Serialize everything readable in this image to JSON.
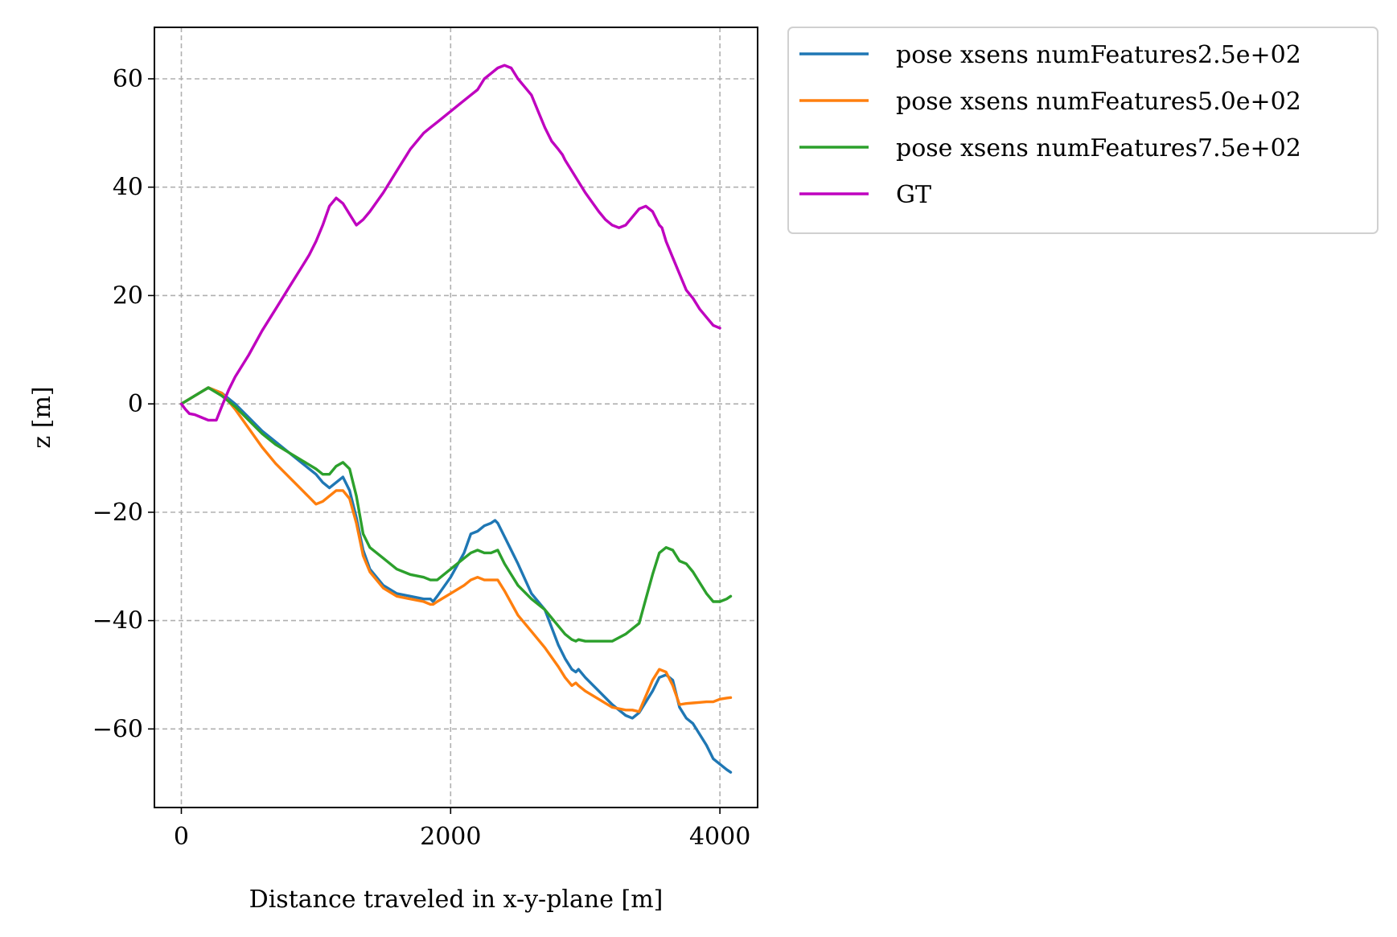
{
  "chart_data": {
    "type": "line",
    "title": "",
    "xlabel": "Distance traveled in x-y-plane [m]",
    "ylabel": "z [m]",
    "xlim": [
      -200,
      4280
    ],
    "ylim": [
      -74.5,
      69.5
    ],
    "xticks": [
      0,
      2000,
      4000
    ],
    "yticks": [
      -60,
      -40,
      -20,
      0,
      20,
      40,
      60
    ],
    "xtick_labels": [
      "0",
      "2000",
      "4000"
    ],
    "ytick_labels": [
      "−60",
      "−40",
      "−20",
      "0",
      "20",
      "40",
      "60"
    ],
    "grid": true,
    "legend_position": "outside upper right",
    "series": [
      {
        "name": "pose xsens numFeatures2.5e+02",
        "color": "#1f77b4",
        "x": [
          0,
          100,
          200,
          300,
          400,
          500,
          600,
          700,
          800,
          900,
          1000,
          1050,
          1100,
          1150,
          1200,
          1250,
          1300,
          1350,
          1400,
          1500,
          1600,
          1700,
          1800,
          1850,
          1870,
          1900,
          2000,
          2100,
          2150,
          2200,
          2250,
          2300,
          2330,
          2350,
          2400,
          2500,
          2600,
          2700,
          2800,
          2850,
          2900,
          2930,
          2950,
          3000,
          3100,
          3200,
          3300,
          3350,
          3400,
          3500,
          3550,
          3600,
          3650,
          3700,
          3750,
          3800,
          3900,
          3950,
          4000,
          4050,
          4080
        ],
        "y": [
          0,
          1.5,
          3,
          2,
          0,
          -2.5,
          -5,
          -7,
          -9,
          -11,
          -13,
          -14.5,
          -15.5,
          -14.5,
          -13.5,
          -16,
          -21,
          -27,
          -30.5,
          -33.5,
          -35,
          -35.5,
          -36,
          -36,
          -36.5,
          -35.5,
          -32,
          -27.5,
          -24,
          -23.5,
          -22.5,
          -22,
          -21.5,
          -22,
          -24.5,
          -29.5,
          -35,
          -38,
          -44.5,
          -47,
          -49,
          -49.5,
          -49,
          -50.5,
          -53,
          -55.5,
          -57.5,
          -58,
          -57,
          -53,
          -50.5,
          -50,
          -51,
          -56,
          -58,
          -59,
          -63,
          -65.5,
          -66.5,
          -67.5,
          -68
        ]
      },
      {
        "name": "pose xsens numFeatures5.0e+02",
        "color": "#ff7f0e",
        "x": [
          0,
          100,
          200,
          300,
          400,
          500,
          600,
          700,
          800,
          900,
          1000,
          1050,
          1100,
          1150,
          1200,
          1250,
          1300,
          1350,
          1400,
          1500,
          1600,
          1700,
          1800,
          1850,
          1870,
          1900,
          2000,
          2100,
          2150,
          2200,
          2250,
          2300,
          2350,
          2400,
          2500,
          2600,
          2700,
          2800,
          2850,
          2900,
          2930,
          2950,
          3000,
          3100,
          3200,
          3300,
          3350,
          3400,
          3500,
          3550,
          3600,
          3650,
          3700,
          3750,
          3800,
          3850,
          3900,
          3950,
          4000,
          4050,
          4080
        ],
        "y": [
          0,
          1.5,
          3,
          2,
          -1,
          -4.5,
          -8,
          -11,
          -13.5,
          -16,
          -18.5,
          -18,
          -17,
          -16,
          -16,
          -17.5,
          -22,
          -28,
          -31,
          -34,
          -35.5,
          -36,
          -36.5,
          -37,
          -37,
          -36.5,
          -35,
          -33.5,
          -32.5,
          -32,
          -32.5,
          -32.5,
          -32.5,
          -34.5,
          -39,
          -42,
          -45,
          -48.5,
          -50.5,
          -52,
          -51.5,
          -52,
          -53,
          -54.5,
          -56,
          -56.5,
          -56.5,
          -56.8,
          -51,
          -49,
          -49.5,
          -52,
          -55.5,
          -55.3,
          -55.2,
          -55.1,
          -55,
          -55,
          -54.5,
          -54.3,
          -54.2
        ]
      },
      {
        "name": "pose xsens numFeatures7.5e+02",
        "color": "#2ca02c",
        "x": [
          0,
          100,
          200,
          300,
          400,
          500,
          600,
          700,
          800,
          900,
          1000,
          1050,
          1100,
          1150,
          1200,
          1250,
          1300,
          1350,
          1400,
          1500,
          1600,
          1700,
          1800,
          1850,
          1870,
          1900,
          2000,
          2100,
          2150,
          2200,
          2250,
          2300,
          2350,
          2400,
          2500,
          2600,
          2700,
          2800,
          2850,
          2900,
          2930,
          2950,
          3000,
          3100,
          3200,
          3300,
          3350,
          3400,
          3450,
          3500,
          3550,
          3600,
          3650,
          3700,
          3750,
          3800,
          3850,
          3900,
          3950,
          4000,
          4050,
          4080
        ],
        "y": [
          0,
          1.5,
          3,
          1.5,
          -0.5,
          -3,
          -5.5,
          -7.5,
          -9,
          -10.5,
          -12,
          -13,
          -13,
          -11.5,
          -10.8,
          -12,
          -17,
          -24,
          -26.5,
          -28.5,
          -30.5,
          -31.5,
          -32,
          -32.5,
          -32.5,
          -32.5,
          -30.5,
          -28.5,
          -27.5,
          -27,
          -27.5,
          -27.5,
          -27,
          -29.5,
          -33.5,
          -36,
          -38,
          -41,
          -42.5,
          -43.5,
          -43.8,
          -43.5,
          -43.8,
          -43.8,
          -43.8,
          -42.5,
          -41.5,
          -40.5,
          -36,
          -31.5,
          -27.5,
          -26.5,
          -27,
          -29,
          -29.5,
          -31,
          -33,
          -35,
          -36.5,
          -36.5,
          -36,
          -35.5
        ]
      },
      {
        "name": "GT",
        "color": "#bf00bf",
        "x": [
          0,
          30,
          60,
          100,
          150,
          200,
          230,
          260,
          300,
          350,
          400,
          500,
          600,
          700,
          800,
          900,
          950,
          1000,
          1050,
          1100,
          1150,
          1200,
          1250,
          1300,
          1350,
          1400,
          1500,
          1600,
          1700,
          1800,
          1850,
          1900,
          2000,
          2100,
          2150,
          2200,
          2250,
          2300,
          2350,
          2400,
          2450,
          2500,
          2550,
          2600,
          2650,
          2700,
          2750,
          2800,
          2830,
          2850,
          2900,
          3000,
          3100,
          3150,
          3200,
          3250,
          3300,
          3350,
          3400,
          3450,
          3500,
          3550,
          3570,
          3600,
          3650,
          3700,
          3750,
          3800,
          3850,
          3900,
          3950,
          4000
        ],
        "y": [
          0,
          -1,
          -1.8,
          -2,
          -2.5,
          -3,
          -3,
          -3,
          -0.5,
          2.5,
          5,
          9,
          13.5,
          17.5,
          21.5,
          25.5,
          27.5,
          30,
          33,
          36.5,
          38,
          37,
          35,
          33,
          34,
          35.5,
          39,
          43,
          47,
          50,
          51,
          52,
          54,
          56,
          57,
          58,
          60,
          61,
          62,
          62.5,
          62,
          60,
          58.5,
          57,
          54,
          51,
          48.5,
          47,
          46,
          45,
          43,
          39,
          35.5,
          34,
          33,
          32.5,
          33,
          34.5,
          36,
          36.5,
          35.5,
          33,
          32.5,
          30,
          27,
          24,
          21,
          19.5,
          17.5,
          16,
          14.5,
          14
        ]
      }
    ]
  }
}
